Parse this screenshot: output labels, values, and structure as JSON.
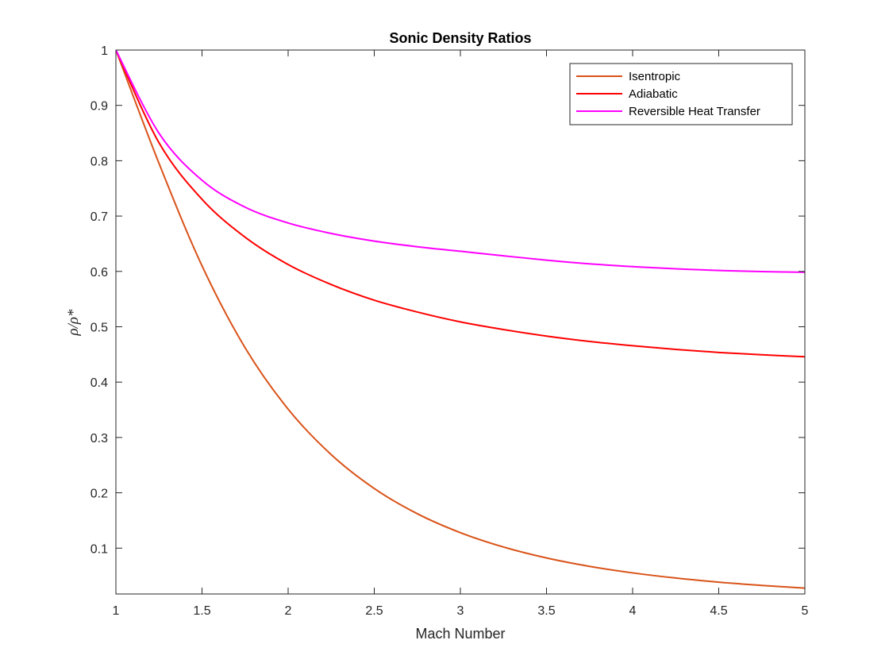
{
  "chart_data": {
    "type": "line",
    "title": "Sonic Density Ratios",
    "xlabel": "Mach Number",
    "ylabel": "ρ/ρ*",
    "xlim": [
      1,
      5
    ],
    "ylim": [
      0.0172,
      1
    ],
    "x_ticks": [
      1,
      1.5,
      2,
      2.5,
      3,
      3.5,
      4,
      4.5,
      5
    ],
    "x_tick_labels": [
      "1",
      "1.5",
      "2",
      "2.5",
      "3",
      "3.5",
      "4",
      "4.5",
      "5"
    ],
    "y_ticks": [
      0.1,
      0.2,
      0.3,
      0.4,
      0.5,
      0.6,
      0.7,
      0.8,
      0.9,
      1
    ],
    "y_tick_labels": [
      "0.1",
      "0.2",
      "0.3",
      "0.4",
      "0.5",
      "0.6",
      "0.7",
      "0.8",
      "0.9",
      "1"
    ],
    "grid": false,
    "box": true,
    "legend_position": "top-right",
    "x": [
      1,
      1.25,
      1.5,
      1.75,
      2,
      2.25,
      2.5,
      2.75,
      3,
      3.25,
      3.5,
      3.75,
      4,
      4.25,
      4.5,
      4.75,
      5
    ],
    "series": [
      {
        "name": "Isentropic",
        "color": "#D95319",
        "values": [
          1.0,
          0.7955,
          0.6102,
          0.4622,
          0.3512,
          0.269,
          0.2078,
          0.1622,
          0.128,
          0.1021,
          0.0823,
          0.0671,
          0.0553,
          0.046,
          0.0386,
          0.0327,
          0.0278
        ]
      },
      {
        "name": "Adiabatic",
        "color": "#FF0000",
        "values": [
          1.0,
          0.8327,
          0.7303,
          0.6618,
          0.6124,
          0.5763,
          0.548,
          0.5266,
          0.5088,
          0.495,
          0.4832,
          0.4735,
          0.4657,
          0.4591,
          0.4536,
          0.4494,
          0.4459
        ]
      },
      {
        "name": "Reversible Heat Transfer",
        "color": "#FF00FF",
        "values": [
          1.0,
          0.8498,
          0.7647,
          0.7161,
          0.6875,
          0.6686,
          0.6548,
          0.6446,
          0.6364,
          0.6282,
          0.6204,
          0.6137,
          0.6087,
          0.6047,
          0.6017,
          0.5997,
          0.5984
        ]
      }
    ]
  }
}
